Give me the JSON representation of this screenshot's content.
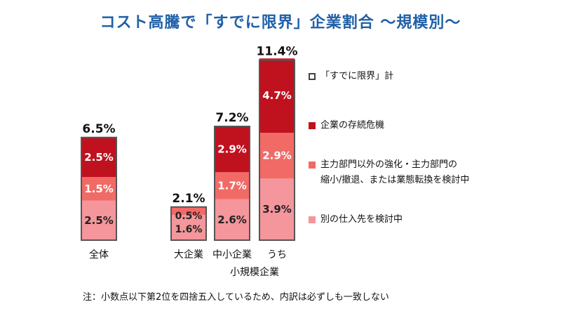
{
  "title": "コスト高騰で「すでに限界」企業割合 ～規模別～",
  "note": "注：小数点以下第2位を四捨五入しているため、内訳は必ずしも一致しない",
  "colors": {
    "crisis": "#c0111e",
    "dept": "#f26a66",
    "supplier": "#f4969b",
    "outline": "#555555"
  },
  "chart_data": {
    "type": "bar",
    "stacked": true,
    "categories": [
      "全体",
      "大企業",
      "中小企業",
      "うち"
    ],
    "group_label": {
      "text": "小規模企業",
      "spans": [
        "中小企業",
        "うち"
      ]
    },
    "totals": [
      6.5,
      2.1,
      7.2,
      11.4
    ],
    "total_labels": [
      "6.5%",
      "2.1%",
      "7.2%",
      "11.4%"
    ],
    "series": [
      {
        "name": "別の仕入先を検討中",
        "values": [
          2.5,
          1.6,
          2.6,
          3.9
        ],
        "labels": [
          "2.5%",
          "1.6%",
          "2.6%",
          "3.9%"
        ]
      },
      {
        "name": "主力部門以外の強化・主力部門の縮小/撤退、または業態転換を検討中",
        "values": [
          1.5,
          0.5,
          1.7,
          2.9
        ],
        "labels": [
          "1.5%",
          "0.5%",
          "1.7%",
          "2.9%"
        ]
      },
      {
        "name": "企業の存続危機",
        "values": [
          2.5,
          0,
          2.9,
          4.7
        ],
        "labels": [
          "2.5%",
          "",
          "2.9%",
          "4.7%"
        ]
      }
    ],
    "legend": [
      {
        "label": "「すでに限界」計",
        "style": "outline"
      },
      {
        "label": "企業の存続危機",
        "style": "crisis"
      },
      {
        "label": "主力部門以外の強化・主力部門の\n縮小/撤退、または業態転換を検討中",
        "style": "dept"
      },
      {
        "label": "別の仕入先を検討中",
        "style": "supplier"
      }
    ],
    "ylim": [
      0,
      12
    ],
    "grid": false,
    "legend_position": "right"
  }
}
